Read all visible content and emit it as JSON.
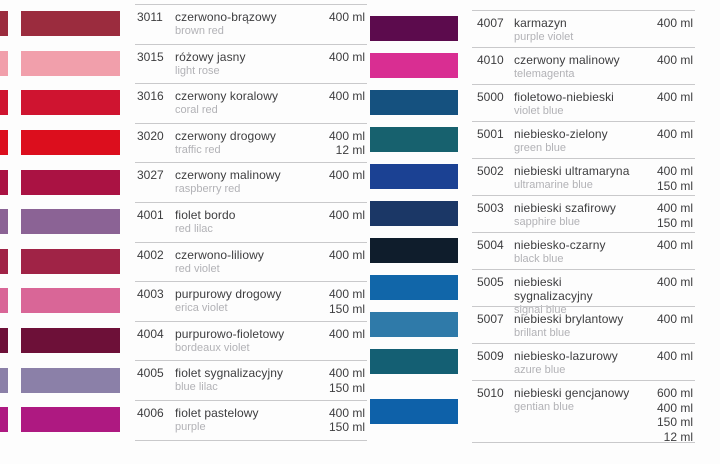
{
  "document": {
    "type": "spray-paint color chart",
    "columns": [
      {
        "id": "left",
        "rows": [
          {
            "code": "3011",
            "name_pl": "czerwono-brązowy",
            "name_en": "brown red",
            "volumes": [
              "400 ml"
            ],
            "color": "#9b2c3e"
          },
          {
            "code": "3015",
            "name_pl": "różowy jasny",
            "name_en": "light rose",
            "volumes": [
              "400 ml"
            ],
            "color": "#f19fab"
          },
          {
            "code": "3016",
            "name_pl": "czerwony koralowy",
            "name_en": "coral red",
            "volumes": [
              "400 ml"
            ],
            "color": "#cf1430"
          },
          {
            "code": "3020",
            "name_pl": "czerwony drogowy",
            "name_en": "traffic red",
            "volumes": [
              "400 ml",
              "12 ml"
            ],
            "color": "#dc0e1d"
          },
          {
            "code": "3027",
            "name_pl": "czerwony malinowy",
            "name_en": "raspberry red",
            "volumes": [
              "400 ml"
            ],
            "color": "#aa1243"
          },
          {
            "code": "4001",
            "name_pl": "fiolet bordo",
            "name_en": "red lilac",
            "volumes": [
              "400 ml"
            ],
            "color": "#8b6395"
          },
          {
            "code": "4002",
            "name_pl": "czerwono-liliowy",
            "name_en": "red violet",
            "volumes": [
              "400 ml"
            ],
            "color": "#a02346"
          },
          {
            "code": "4003",
            "name_pl": "purpurowy drogowy",
            "name_en": "erica violet",
            "volumes": [
              "400 ml",
              "150 ml"
            ],
            "color": "#d96697"
          },
          {
            "code": "4004",
            "name_pl": "purpurowo-fioletowy",
            "name_en": "bordeaux violet",
            "volumes": [
              "400 ml"
            ],
            "color": "#6d1038"
          },
          {
            "code": "4005",
            "name_pl": "fiolet sygnalizacyjny",
            "name_en": "blue lilac",
            "volumes": [
              "400 ml",
              "150 ml"
            ],
            "color": "#8b80a8"
          },
          {
            "code": "4006",
            "name_pl": "fiolet pastelowy",
            "name_en": "purple",
            "volumes": [
              "400 ml",
              "150 ml"
            ],
            "color": "#ae1981"
          }
        ]
      },
      {
        "id": "right",
        "rows": [
          {
            "code": "4007",
            "name_pl": "karmazyn",
            "name_en": "purple violet",
            "volumes": [
              "400 ml"
            ],
            "color": "#5c0b4d"
          },
          {
            "code": "4010",
            "name_pl": "czerwony malinowy",
            "name_en": "telemagenta",
            "volumes": [
              "400 ml"
            ],
            "color": "#d92e92"
          },
          {
            "code": "5000",
            "name_pl": "fioletowo-niebieski",
            "name_en": "violet blue",
            "volumes": [
              "400 ml"
            ],
            "color": "#15517f"
          },
          {
            "code": "5001",
            "name_pl": "niebiesko-zielony",
            "name_en": "green blue",
            "volumes": [
              "400 ml"
            ],
            "color": "#17616e"
          },
          {
            "code": "5002",
            "name_pl": "niebieski ultramaryna",
            "name_en": "ultramarine blue",
            "volumes": [
              "400 ml",
              "150 ml"
            ],
            "color": "#1b4193"
          },
          {
            "code": "5003",
            "name_pl": "niebieski szafirowy",
            "name_en": "sapphire blue",
            "volumes": [
              "400 ml",
              "150 ml"
            ],
            "color": "#1b3766"
          },
          {
            "code": "5004",
            "name_pl": "niebiesko-czarny",
            "name_en": "black blue",
            "volumes": [
              "400 ml"
            ],
            "color": "#0f1d2c"
          },
          {
            "code": "5005",
            "name_pl": "niebieski sygnalizacyjny",
            "name_en": "signal blue",
            "volumes": [
              "400 ml"
            ],
            "color": "#1166a9"
          },
          {
            "code": "5007",
            "name_pl": "niebieski brylantowy",
            "name_en": "brillant blue",
            "volumes": [
              "400 ml"
            ],
            "color": "#2f7aa9"
          },
          {
            "code": "5009",
            "name_pl": "niebiesko-lazurowy",
            "name_en": "azure blue",
            "volumes": [
              "400 ml"
            ],
            "color": "#145f73"
          },
          {
            "code": "5010",
            "name_pl": "niebieski gencjanowy",
            "name_en": "gentian blue",
            "volumes": [
              "600 ml",
              "400 ml",
              "150 ml",
              "12 ml"
            ],
            "color": "#0e61a9"
          }
        ]
      }
    ]
  }
}
